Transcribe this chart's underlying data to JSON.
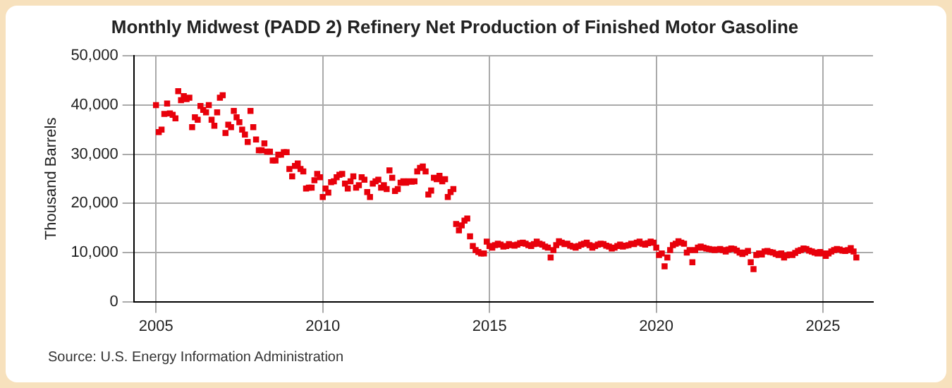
{
  "chart_data": {
    "type": "scatter",
    "title": "Monthly Midwest (PADD 2) Refinery Net Production of Finished Motor Gasoline",
    "ylabel": "Thousand Barrels",
    "annotations": [
      "Source: U.S. Energy Information Administration"
    ],
    "x": [
      "2005-01",
      "2005-02",
      "2005-03",
      "2005-04",
      "2005-05",
      "2005-06",
      "2005-07",
      "2005-08",
      "2005-09",
      "2005-10",
      "2005-11",
      "2005-12",
      "2006-01",
      "2006-02",
      "2006-03",
      "2006-04",
      "2006-05",
      "2006-06",
      "2006-07",
      "2006-08",
      "2006-09",
      "2006-10",
      "2006-11",
      "2006-12",
      "2007-01",
      "2007-02",
      "2007-03",
      "2007-04",
      "2007-05",
      "2007-06",
      "2007-07",
      "2007-08",
      "2007-09",
      "2007-10",
      "2007-11",
      "2007-12",
      "2008-01",
      "2008-02",
      "2008-03",
      "2008-04",
      "2008-05",
      "2008-06",
      "2008-07",
      "2008-08",
      "2008-09",
      "2008-10",
      "2008-11",
      "2008-12",
      "2009-01",
      "2009-02",
      "2009-03",
      "2009-04",
      "2009-05",
      "2009-06",
      "2009-07",
      "2009-08",
      "2009-09",
      "2009-10",
      "2009-11",
      "2009-12",
      "2010-01",
      "2010-02",
      "2010-03",
      "2010-04",
      "2010-05",
      "2010-06",
      "2010-07",
      "2010-08",
      "2010-09",
      "2010-10",
      "2010-11",
      "2010-12",
      "2011-01",
      "2011-02",
      "2011-03",
      "2011-04",
      "2011-05",
      "2011-06",
      "2011-07",
      "2011-08",
      "2011-09",
      "2011-10",
      "2011-11",
      "2011-12",
      "2012-01",
      "2012-02",
      "2012-03",
      "2012-04",
      "2012-05",
      "2012-06",
      "2012-07",
      "2012-08",
      "2012-09",
      "2012-10",
      "2012-11",
      "2012-12",
      "2013-01",
      "2013-02",
      "2013-03",
      "2013-04",
      "2013-05",
      "2013-06",
      "2013-07",
      "2013-08",
      "2013-09",
      "2013-10",
      "2013-11",
      "2013-12",
      "2014-01",
      "2014-02",
      "2014-03",
      "2014-04",
      "2014-05",
      "2014-06",
      "2014-07",
      "2014-08",
      "2014-09",
      "2014-10",
      "2014-11",
      "2014-12",
      "2015-01",
      "2015-02",
      "2015-03",
      "2015-04",
      "2015-05",
      "2015-06",
      "2015-07",
      "2015-08",
      "2015-09",
      "2015-10",
      "2015-11",
      "2015-12",
      "2016-01",
      "2016-02",
      "2016-03",
      "2016-04",
      "2016-05",
      "2016-06",
      "2016-07",
      "2016-08",
      "2016-09",
      "2016-10",
      "2016-11",
      "2016-12",
      "2017-01",
      "2017-02",
      "2017-03",
      "2017-04",
      "2017-05",
      "2017-06",
      "2017-07",
      "2017-08",
      "2017-09",
      "2017-10",
      "2017-11",
      "2017-12",
      "2018-01",
      "2018-02",
      "2018-03",
      "2018-04",
      "2018-05",
      "2018-06",
      "2018-07",
      "2018-08",
      "2018-09",
      "2018-10",
      "2018-11",
      "2018-12",
      "2019-01",
      "2019-02",
      "2019-03",
      "2019-04",
      "2019-05",
      "2019-06",
      "2019-07",
      "2019-08",
      "2019-09",
      "2019-10",
      "2019-11",
      "2019-12",
      "2020-01",
      "2020-02",
      "2020-03",
      "2020-04",
      "2020-05",
      "2020-06",
      "2020-07",
      "2020-08",
      "2020-09",
      "2020-10",
      "2020-11",
      "2020-12",
      "2021-01",
      "2021-02",
      "2021-03",
      "2021-04",
      "2021-05",
      "2021-06",
      "2021-07",
      "2021-08",
      "2021-09",
      "2021-10",
      "2021-11",
      "2021-12",
      "2022-01",
      "2022-02",
      "2022-03",
      "2022-04",
      "2022-05",
      "2022-06",
      "2022-07",
      "2022-08",
      "2022-09",
      "2022-10",
      "2022-11",
      "2022-12",
      "2023-01",
      "2023-02",
      "2023-03",
      "2023-04",
      "2023-05",
      "2023-06",
      "2023-07",
      "2023-08",
      "2023-09",
      "2023-10",
      "2023-11",
      "2023-12",
      "2024-01",
      "2024-02",
      "2024-03",
      "2024-04",
      "2024-05",
      "2024-06",
      "2024-07",
      "2024-08",
      "2024-09",
      "2024-10",
      "2024-11",
      "2024-12",
      "2025-01",
      "2025-02",
      "2025-03",
      "2025-04",
      "2025-05",
      "2025-06",
      "2025-07",
      "2025-08",
      "2025-09",
      "2025-10",
      "2025-11",
      "2025-12",
      "2026-01"
    ],
    "series": [
      {
        "color": "#e8000b",
        "values": [
          40000,
          34500,
          35000,
          38200,
          40300,
          38300,
          38000,
          37300,
          42800,
          41000,
          41800,
          41200,
          41500,
          35500,
          37500,
          37000,
          39800,
          39000,
          38500,
          40000,
          37000,
          35800,
          38500,
          41500,
          42000,
          34300,
          36000,
          35500,
          38800,
          37500,
          36500,
          35000,
          34000,
          32500,
          38800,
          35500,
          33000,
          30800,
          30800,
          32200,
          30500,
          30500,
          28700,
          28700,
          29900,
          29900,
          30400,
          30400,
          27000,
          25500,
          27600,
          28100,
          27000,
          26500,
          23000,
          23200,
          23200,
          24700,
          26000,
          25300,
          21300,
          23000,
          22200,
          24300,
          24500,
          25300,
          25800,
          26000,
          24000,
          23000,
          24500,
          25500,
          23200,
          23700,
          25300,
          24800,
          22300,
          21300,
          24000,
          24500,
          24800,
          23200,
          23700,
          22900,
          26700,
          25200,
          22500,
          22900,
          24200,
          24500,
          24200,
          24500,
          24400,
          24500,
          26500,
          27200,
          27500,
          26500,
          21800,
          22600,
          25200,
          24900,
          25600,
          24500,
          24900,
          21300,
          22300,
          22900,
          15800,
          14500,
          15500,
          16500,
          16900,
          13300,
          11300,
          10500,
          10100,
          9800,
          9800,
          12200,
          11300,
          11000,
          11500,
          11800,
          11600,
          11200,
          11300,
          11700,
          11500,
          11400,
          11600,
          11900,
          12000,
          11800,
          11500,
          11300,
          11700,
          12200,
          11800,
          11600,
          11200,
          11000,
          9000,
          10500,
          11500,
          12300,
          12000,
          11700,
          11800,
          11400,
          11200,
          11000,
          11300,
          11600,
          11800,
          12000,
          11500,
          11000,
          11300,
          11600,
          11800,
          11700,
          11400,
          11200,
          10800,
          11000,
          11300,
          11600,
          11200,
          11400,
          11500,
          11800,
          11700,
          12000,
          12200,
          11800,
          11600,
          11900,
          12200,
          12000,
          11000,
          9500,
          9800,
          7200,
          9000,
          10500,
          11500,
          11800,
          12300,
          12000,
          11800,
          10000,
          10500,
          8000,
          10500,
          11000,
          11200,
          11000,
          10800,
          10700,
          10600,
          10500,
          10600,
          10700,
          10500,
          10200,
          10600,
          10800,
          10700,
          10400,
          10000,
          9700,
          10000,
          10300,
          8000,
          6600,
          9500,
          9800,
          9600,
          10200,
          10300,
          10100,
          10000,
          9700,
          9500,
          9800,
          9000,
          9400,
          9600,
          9500,
          9900,
          10300,
          10500,
          10800,
          10700,
          10400,
          10200,
          10000,
          9800,
          10100,
          9800,
          9300,
          9800,
          10200,
          10500,
          10700,
          10600,
          10400,
          10300,
          10500,
          10900,
          10200,
          9000
        ]
      }
    ],
    "xlim": [
      "2004-05",
      "2026-07"
    ],
    "xticks": [
      "2005",
      "2010",
      "2015",
      "2020",
      "2025"
    ],
    "ylim": [
      0,
      50000
    ],
    "yticks": [
      0,
      {
        "value": 10000,
        "label": "10,000"
      },
      {
        "value": 20000,
        "label": "20,000"
      },
      {
        "value": 30000,
        "label": "30,000"
      },
      {
        "value": 40000,
        "label": "40,000"
      },
      {
        "value": 50000,
        "label": "50,000"
      }
    ],
    "grid": true,
    "legend": false,
    "marker": "square"
  }
}
